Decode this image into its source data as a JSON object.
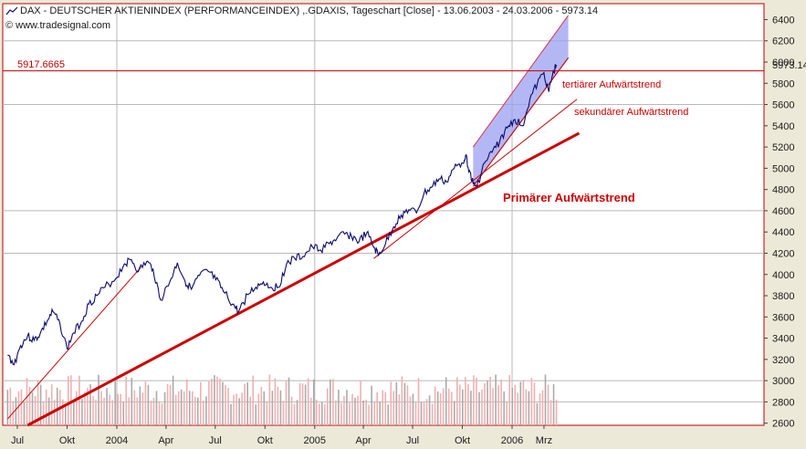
{
  "header": {
    "title": "DAX  - DEUTSCHER AKTIENINDEX (PERFORMANCEINDEX) ,.GDAXIS, Tageschart [Close] - 13.06.2003 - 24.03.2006 - 5973.14",
    "source": "© www.tradesignal.com"
  },
  "chart_data": {
    "type": "line",
    "title": "DAX  - DEUTSCHER AKTIENINDEX (PERFORMANCEINDEX) ,.GDAXIS, Tageschart [Close] - 13.06.2003 - 24.03.2006 - 5973.14",
    "x_axis_labels": [
      "Jul",
      "Okt",
      "2004",
      "Apr",
      "Jul",
      "Okt",
      "2005",
      "Apr",
      "Jul",
      "Okt",
      "2006",
      "Mrz"
    ],
    "x_axis_dates": [
      "2003-07-01",
      "2003-10-01",
      "2004-01-01",
      "2004-04-01",
      "2004-07-01",
      "2004-10-01",
      "2005-01-01",
      "2005-04-01",
      "2005-07-01",
      "2005-10-01",
      "2006-01-01",
      "2006-03-01"
    ],
    "y_ticks": [
      2600,
      2800,
      3000,
      3200,
      3400,
      3600,
      3800,
      4000,
      4200,
      4400,
      4600,
      4800,
      5000,
      5200,
      5400,
      5600,
      5800,
      6000,
      6200,
      6400
    ],
    "ylim": [
      2580,
      6550
    ],
    "grid": true,
    "last_value": 5973.14,
    "last_value_label": "5973.14",
    "reference_line": {
      "value": 5917.6665,
      "label": "5917.6665"
    },
    "series": [
      {
        "values": [
          {
            "x": "2003-06-13",
            "y": 3240
          },
          {
            "x": "2003-06-25",
            "y": 3150
          },
          {
            "x": "2003-07-07",
            "y": 3330
          },
          {
            "x": "2003-07-20",
            "y": 3420
          },
          {
            "x": "2003-08-01",
            "y": 3380
          },
          {
            "x": "2003-08-12",
            "y": 3440
          },
          {
            "x": "2003-08-25",
            "y": 3560
          },
          {
            "x": "2003-09-05",
            "y": 3650
          },
          {
            "x": "2003-09-18",
            "y": 3530
          },
          {
            "x": "2003-10-01",
            "y": 3300
          },
          {
            "x": "2003-10-13",
            "y": 3450
          },
          {
            "x": "2003-10-28",
            "y": 3560
          },
          {
            "x": "2003-11-10",
            "y": 3720
          },
          {
            "x": "2003-11-25",
            "y": 3800
          },
          {
            "x": "2003-12-10",
            "y": 3880
          },
          {
            "x": "2003-12-30",
            "y": 3960
          },
          {
            "x": "2004-01-15",
            "y": 4100
          },
          {
            "x": "2004-01-28",
            "y": 4140
          },
          {
            "x": "2004-02-10",
            "y": 4030
          },
          {
            "x": "2004-02-25",
            "y": 4120
          },
          {
            "x": "2004-03-08",
            "y": 4050
          },
          {
            "x": "2004-03-22",
            "y": 3760
          },
          {
            "x": "2004-04-08",
            "y": 3930
          },
          {
            "x": "2004-04-22",
            "y": 4110
          },
          {
            "x": "2004-05-06",
            "y": 3940
          },
          {
            "x": "2004-05-18",
            "y": 3860
          },
          {
            "x": "2004-06-02",
            "y": 3990
          },
          {
            "x": "2004-06-18",
            "y": 4030
          },
          {
            "x": "2004-07-02",
            "y": 3950
          },
          {
            "x": "2004-07-16",
            "y": 3840
          },
          {
            "x": "2004-08-02",
            "y": 3720
          },
          {
            "x": "2004-08-13",
            "y": 3650
          },
          {
            "x": "2004-08-30",
            "y": 3810
          },
          {
            "x": "2004-09-14",
            "y": 3880
          },
          {
            "x": "2004-09-28",
            "y": 3930
          },
          {
            "x": "2004-10-12",
            "y": 3880
          },
          {
            "x": "2004-10-26",
            "y": 3880
          },
          {
            "x": "2004-11-10",
            "y": 4100
          },
          {
            "x": "2004-11-25",
            "y": 4150
          },
          {
            "x": "2004-12-10",
            "y": 4170
          },
          {
            "x": "2004-12-28",
            "y": 4260
          },
          {
            "x": "2005-01-12",
            "y": 4230
          },
          {
            "x": "2005-01-28",
            "y": 4290
          },
          {
            "x": "2005-02-11",
            "y": 4340
          },
          {
            "x": "2005-02-25",
            "y": 4380
          },
          {
            "x": "2005-03-10",
            "y": 4360
          },
          {
            "x": "2005-03-24",
            "y": 4310
          },
          {
            "x": "2005-04-07",
            "y": 4390
          },
          {
            "x": "2005-04-21",
            "y": 4250
          },
          {
            "x": "2005-04-29",
            "y": 4180
          },
          {
            "x": "2005-05-12",
            "y": 4290
          },
          {
            "x": "2005-05-27",
            "y": 4450
          },
          {
            "x": "2005-06-10",
            "y": 4560
          },
          {
            "x": "2005-06-24",
            "y": 4610
          },
          {
            "x": "2005-07-08",
            "y": 4580
          },
          {
            "x": "2005-07-22",
            "y": 4760
          },
          {
            "x": "2005-08-05",
            "y": 4820
          },
          {
            "x": "2005-08-19",
            "y": 4900
          },
          {
            "x": "2005-09-02",
            "y": 4870
          },
          {
            "x": "2005-09-16",
            "y": 5000
          },
          {
            "x": "2005-09-30",
            "y": 5050
          },
          {
            "x": "2005-10-07",
            "y": 5120
          },
          {
            "x": "2005-10-14",
            "y": 4980
          },
          {
            "x": "2005-10-21",
            "y": 4850
          },
          {
            "x": "2005-10-28",
            "y": 4830
          },
          {
            "x": "2005-11-11",
            "y": 5050
          },
          {
            "x": "2005-11-25",
            "y": 5150
          },
          {
            "x": "2005-12-09",
            "y": 5250
          },
          {
            "x": "2005-12-23",
            "y": 5380
          },
          {
            "x": "2006-01-06",
            "y": 5460
          },
          {
            "x": "2006-01-20",
            "y": 5400
          },
          {
            "x": "2006-02-03",
            "y": 5650
          },
          {
            "x": "2006-02-17",
            "y": 5800
          },
          {
            "x": "2006-03-01",
            "y": 5900
          },
          {
            "x": "2006-03-10",
            "y": 5720
          },
          {
            "x": "2006-03-17",
            "y": 5880
          },
          {
            "x": "2006-03-24",
            "y": 5973.14
          }
        ]
      }
    ],
    "volume_bars": {
      "count": 200,
      "min": 2620,
      "max": 3060
    },
    "channel": {
      "lower": [
        {
          "x": "2005-10-21",
          "y": 4830
        },
        {
          "x": "2006-04-15",
          "y": 6040
        }
      ],
      "upper": [
        {
          "x": "2005-10-21",
          "y": 5200
        },
        {
          "x": "2006-04-15",
          "y": 6440
        }
      ]
    },
    "trendlines": [
      {
        "label": "Primärer Aufwärtstrend",
        "from": {
          "x": "2003-07-20",
          "y": 2580
        },
        "to": {
          "x": "2006-05-05",
          "y": 5330
        },
        "color": "#cc0000",
        "weight": "heavy"
      },
      {
        "label": "sekundärer Aufwärtstrend",
        "from": {
          "x": "2005-04-20",
          "y": 4150
        },
        "to": {
          "x": "2006-05-01",
          "y": 5650
        },
        "color": "#cc0000",
        "weight": "thin"
      },
      {
        "label": "tertiärer Aufwärtstrend",
        "from": {
          "x": "2005-10-21",
          "y": 4830
        },
        "to": {
          "x": "2006-04-15",
          "y": 6040
        },
        "color": "#cc0000",
        "weight": "thin"
      },
      {
        "from": {
          "x": "2003-06-13",
          "y": 2640
        },
        "to": {
          "x": "2004-02-15",
          "y": 4070
        },
        "color": "#cc0000",
        "weight": "thin"
      }
    ],
    "colors": {
      "price": "#0a0a6e",
      "trend": "#cc0000",
      "channel_fill": "#9aa0f0",
      "channel_edge": "#e03050",
      "volume": "#f0b0b0",
      "volume_edge": "#aaaaaa",
      "background": "#ffffff",
      "frame": "#ece9d8",
      "grid": "#b8b8b8"
    }
  }
}
